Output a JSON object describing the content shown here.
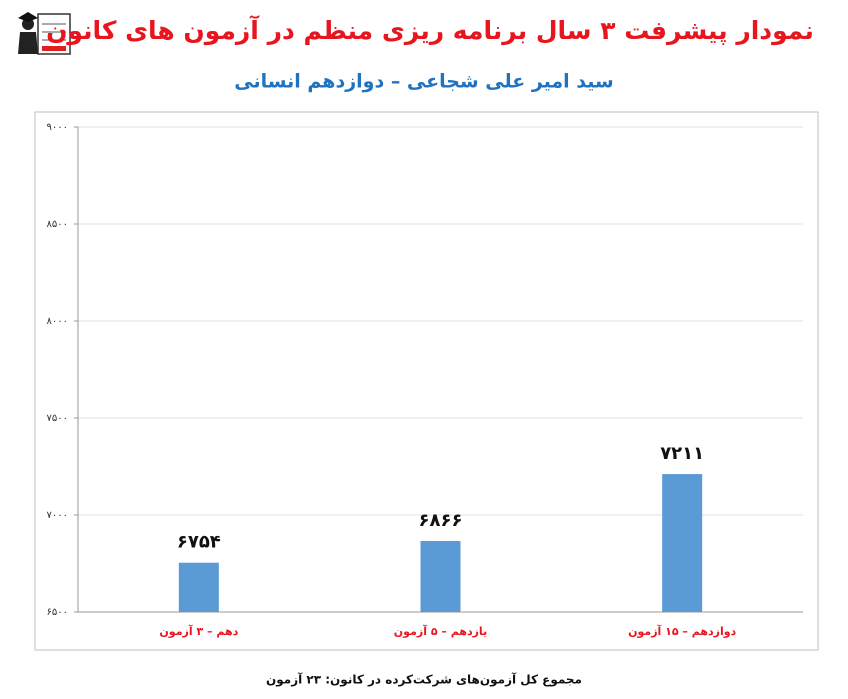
{
  "chart_data": {
    "type": "bar",
    "title": "نمودار پیشرفت ۳ سال برنامه ریزی منظم در آزمون های کانون",
    "subtitle": "سید امیر علی شجاعی – دوازدهم انسانی",
    "categories": [
      "دهم – ۳ آزمون",
      "یازدهم – ۵ آزمون",
      "دوازدهم – ۱۵ آزمون"
    ],
    "values": [
      6754,
      6866,
      7211
    ],
    "value_labels": [
      "۶۷۵۴",
      "۶۸۶۶",
      "۷۲۱۱"
    ],
    "color": "#5b9bd5",
    "ylim": [
      6500,
      9000
    ],
    "yticks": [
      {
        "value": 6500,
        "label": "۶۵۰۰"
      },
      {
        "value": 7000,
        "label": "۷۰۰۰"
      },
      {
        "value": 7500,
        "label": "۷۵۰۰"
      },
      {
        "value": 8000,
        "label": "۸۰۰۰"
      },
      {
        "value": 8500,
        "label": "۸۵۰۰"
      },
      {
        "value": 9000,
        "label": "۹۰۰۰"
      }
    ],
    "grid": true,
    "annotation": "مجموع کل آزمون‌های شرکت‌کرده در کانون: ۲۳ آزمون"
  }
}
